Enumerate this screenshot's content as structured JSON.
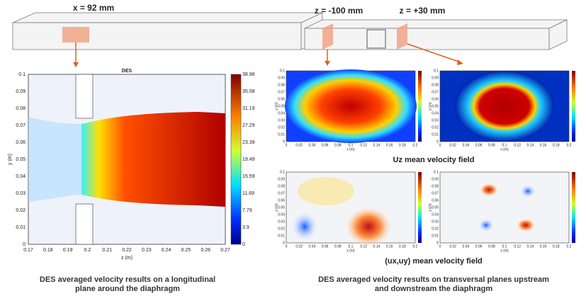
{
  "left": {
    "slice_label": "x = 92 mm",
    "plot_title": "DES",
    "y_label": "y (m)",
    "x_label": "z (m)",
    "yticks": [
      "0",
      "0.01",
      "0.02",
      "0.03",
      "0.04",
      "0.05",
      "0.06",
      "0.07",
      "0.08",
      "0.09",
      "0.1"
    ],
    "xticks": [
      "0.17",
      "0.18",
      "0.19",
      "0.2",
      "0.21",
      "0.22",
      "0.23",
      "0.24",
      "0.25",
      "0.26",
      "0.27"
    ],
    "colorbar_ticks": [
      "0",
      "3.9",
      "7.79",
      "11.69",
      "15.59",
      "19.49",
      "23.39",
      "27.29",
      "31.19",
      "35.08",
      "38.98"
    ],
    "caption": [
      "DES averaged velocity results on a longitudinal",
      "plane around the diaphragm"
    ]
  },
  "right": {
    "slice_labels": [
      "z = -100 mm",
      "z = +30 mm"
    ],
    "x_label": "x (m)",
    "y_label": "y (m)",
    "xticks": [
      "0",
      "0.02",
      "0.04",
      "0.06",
      "0.08",
      "0.1",
      "0.12",
      "0.14",
      "0.16",
      "0.18",
      "0.2"
    ],
    "yticks": [
      "0",
      "0.01",
      "0.02",
      "0.03",
      "0.04",
      "0.05",
      "0.06",
      "0.07",
      "0.08",
      "0.09",
      "0.1"
    ],
    "uz_label": "Uz mean velocity field",
    "uxuy_label": "(ux,uy) mean velocity field",
    "caption": [
      "DES averaged velocity results on transversal planes upstream",
      "and downstream the diaphragm"
    ]
  }
}
